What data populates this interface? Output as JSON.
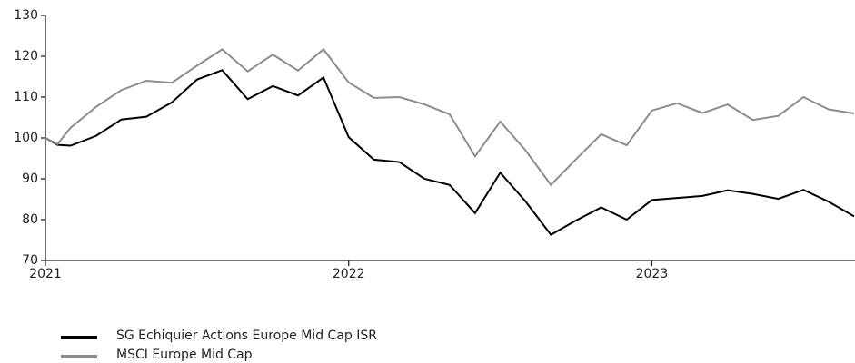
{
  "chart_data": {
    "type": "line",
    "x": [
      2021,
      2021.04,
      2021.083,
      2021.167,
      2021.25,
      2021.333,
      2021.417,
      2021.5,
      2021.583,
      2021.667,
      2021.75,
      2021.833,
      2021.917,
      2022,
      2022.083,
      2022.167,
      2022.25,
      2022.333,
      2022.417,
      2022.5,
      2022.583,
      2022.667,
      2022.75,
      2022.833,
      2022.917,
      2023,
      2023.083,
      2023.167,
      2023.25,
      2023.333,
      2023.417,
      2023.5,
      2023.583,
      2023.667
    ],
    "series": [
      {
        "name": "SG Echiquier Actions Europe Mid Cap ISR",
        "color": "#000000",
        "values": [
          100,
          98.3,
          98.1,
          100.5,
          104.5,
          105.2,
          108.7,
          114.3,
          116.6,
          109.5,
          112.7,
          110.4,
          114.8,
          100.2,
          94.7,
          94.1,
          90,
          88.5,
          81.6,
          91.5,
          84.5,
          76.3,
          79.8,
          83,
          80,
          84.8,
          85.3,
          85.8,
          87.2,
          86.3,
          85.1,
          87.3,
          84.4,
          80.8
        ]
      },
      {
        "name": "MSCI Europe Mid Cap",
        "color": "#8c8c8c",
        "values": [
          100,
          98.5,
          102.5,
          107.6,
          111.7,
          114,
          113.5,
          117.7,
          121.7,
          116.3,
          120.4,
          116.5,
          121.7,
          113.6,
          109.8,
          110,
          108.2,
          105.8,
          95.5,
          104,
          97,
          88.5,
          94.8,
          100.9,
          98.2,
          106.7,
          108.5,
          106.1,
          108.2,
          104.4,
          105.4,
          110,
          107,
          106
        ]
      }
    ],
    "xlim": [
      2021,
      2023.667
    ],
    "xticks": [
      2021,
      2022,
      2023
    ],
    "ylim": [
      70,
      130
    ],
    "yticks": [
      70,
      80,
      90,
      100,
      110,
      120,
      130
    ]
  }
}
